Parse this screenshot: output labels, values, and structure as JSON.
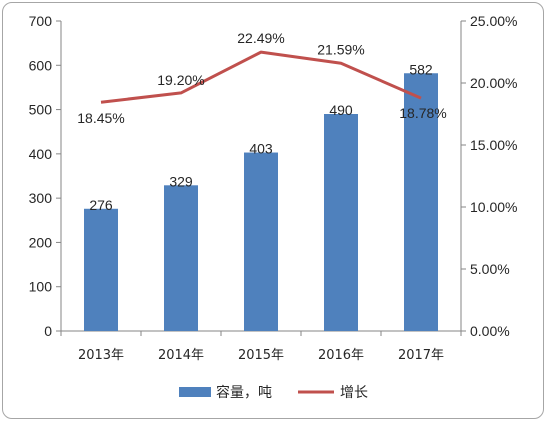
{
  "chart_data": {
    "type": "bar",
    "categories": [
      "2013年",
      "2014年",
      "2015年",
      "2016年",
      "2017年"
    ],
    "series": [
      {
        "name": "容量，吨",
        "type": "bar",
        "axis": "left",
        "values": [
          276,
          329,
          403,
          490,
          582
        ],
        "labels": [
          "276",
          "329",
          "403",
          "490",
          "582"
        ]
      },
      {
        "name": "增长",
        "type": "line",
        "axis": "right",
        "values": [
          18.45,
          19.2,
          22.49,
          21.59,
          18.78
        ],
        "labels": [
          "18.45%",
          "19.20%",
          "22.49%",
          "21.59%",
          "18.78%"
        ]
      }
    ],
    "y_left": {
      "ylim": [
        0,
        700
      ],
      "ticks": [
        "0",
        "100",
        "200",
        "300",
        "400",
        "500",
        "600",
        "700"
      ]
    },
    "y_right": {
      "ylim": [
        0,
        25
      ],
      "ticks": [
        "0.00%",
        "5.00%",
        "10.00%",
        "15.00%",
        "20.00%",
        "25.00%"
      ]
    },
    "grid": false,
    "legend_position": "bottom",
    "colors": {
      "bar": "#4f81bd",
      "line": "#c0504d",
      "axis": "#868686"
    }
  }
}
